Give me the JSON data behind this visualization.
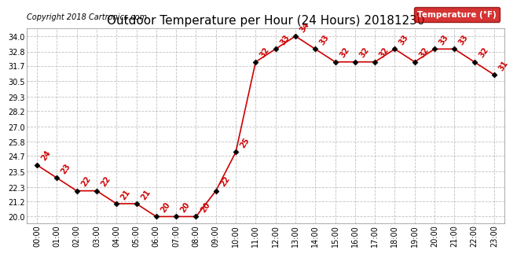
{
  "title": "Outdoor Temperature per Hour (24 Hours) 20181230",
  "copyright": "Copyright 2018 Cartronics.com",
  "legend_label": "Temperature (°F)",
  "hours": [
    0,
    1,
    2,
    3,
    4,
    5,
    6,
    7,
    8,
    9,
    10,
    11,
    12,
    13,
    14,
    15,
    16,
    17,
    18,
    19,
    20,
    21,
    22,
    23
  ],
  "temps": [
    24,
    23,
    22,
    22,
    21,
    21,
    20,
    20,
    20,
    22,
    25,
    32,
    33,
    34,
    33,
    32,
    32,
    32,
    33,
    32,
    33,
    33,
    32,
    31
  ],
  "line_color": "#cc0000",
  "marker_color": "#000000",
  "label_color": "#cc0000",
  "background_color": "#ffffff",
  "grid_color": "#bbbbbb",
  "yticks": [
    20.0,
    21.2,
    22.3,
    23.5,
    24.7,
    25.8,
    27.0,
    28.2,
    29.3,
    30.5,
    31.7,
    32.8,
    34.0
  ],
  "ylim": [
    19.5,
    34.6
  ],
  "xlim": [
    -0.5,
    23.5
  ],
  "title_fontsize": 11,
  "copyright_fontsize": 7,
  "label_fontsize": 7,
  "tick_fontsize": 7,
  "legend_bg": "#cc0000",
  "legend_text_color": "#ffffff",
  "legend_fontsize": 7.5
}
